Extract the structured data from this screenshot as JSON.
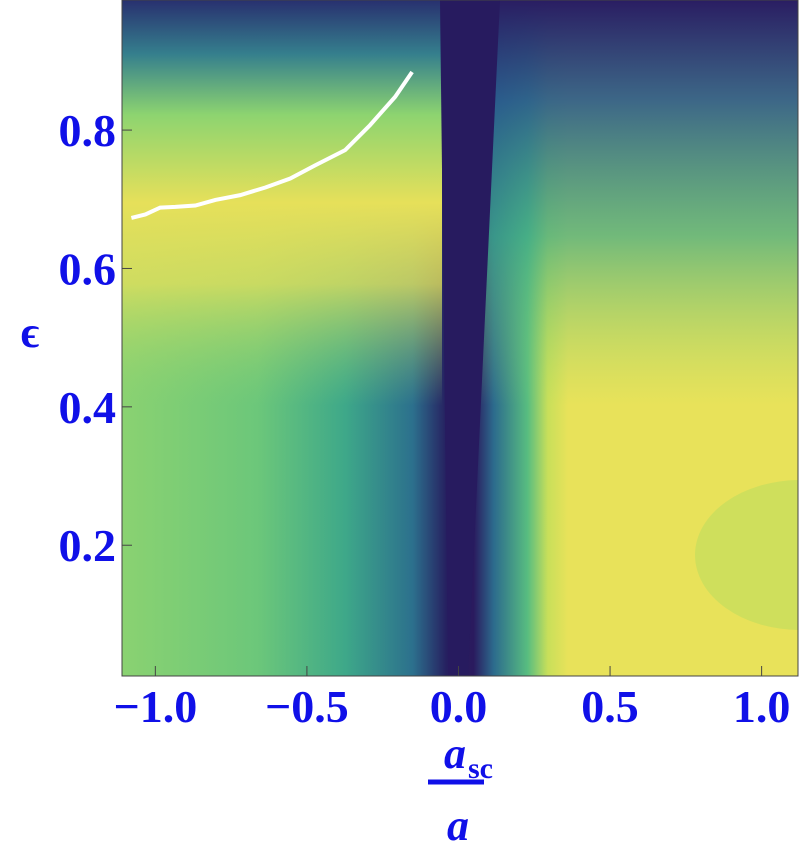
{
  "chart_data": {
    "type": "line",
    "x_label": {
      "numerator": "a",
      "subscript": "sc",
      "denominator": "a"
    },
    "y_label": "ϵ",
    "x": [
      -1.079,
      -1.033,
      -0.984,
      -0.934,
      -0.868,
      -0.802,
      -0.72,
      -0.637,
      -0.555,
      -0.473,
      -0.374,
      -0.292,
      -0.209,
      -0.153
    ],
    "series": [
      {
        "color": "#ffffff",
        "values": [
          0.673,
          0.678,
          0.688,
          0.689,
          0.691,
          0.699,
          0.706,
          0.717,
          0.73,
          0.749,
          0.771,
          0.807,
          0.848,
          0.884
        ]
      }
    ],
    "xlim": [
      -1.11,
      1.12
    ],
    "ylim": [
      0.011,
      0.988
    ],
    "xticks": [
      {
        "value": -1.0,
        "label": "−1.0"
      },
      {
        "value": -0.5,
        "label": "−0.5"
      },
      {
        "value": 0.0,
        "label": "0.0"
      },
      {
        "value": 0.5,
        "label": "0.5"
      },
      {
        "value": 1.0,
        "label": "1.0"
      }
    ],
    "yticks": [
      0.2,
      0.4,
      0.6,
      0.8
    ]
  }
}
